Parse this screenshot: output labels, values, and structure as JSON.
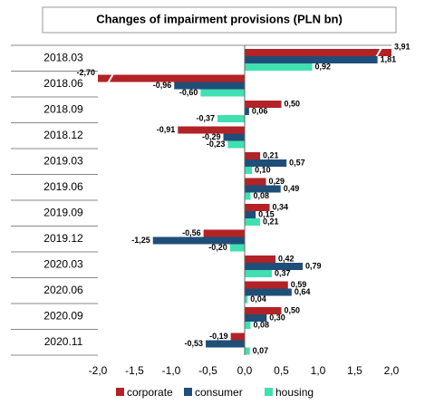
{
  "chart_data": {
    "type": "bar",
    "orientation": "horizontal",
    "title": "Changes of impairment provisions (PLN bn)",
    "categories": [
      "2018.03",
      "2018.06",
      "2018.09",
      "2018.12",
      "2019.03",
      "2019.06",
      "2019.09",
      "2019.12",
      "2020.03",
      "2020.06",
      "2020.09",
      "2020.11"
    ],
    "series": [
      {
        "name": "corporate",
        "color": "#b22226",
        "label_color": "#c0282d",
        "values": [
          3.91,
          -2.7,
          0.5,
          -0.91,
          0.21,
          0.29,
          0.34,
          -0.56,
          0.42,
          0.59,
          0.5,
          -0.19
        ],
        "value_labels": [
          "3,91",
          "-2,70",
          "0,50",
          "-0,91",
          "0,21",
          "0,29",
          "0,34",
          "-0,56",
          "0,42",
          "0,59",
          "0,50",
          "-0,19"
        ]
      },
      {
        "name": "consumer",
        "color": "#1f4e79",
        "label_color": "#1f4e79",
        "values": [
          1.81,
          -0.96,
          0.06,
          -0.29,
          0.57,
          0.49,
          0.15,
          -1.25,
          0.79,
          0.64,
          0.3,
          -0.53
        ],
        "value_labels": [
          "1,81",
          "-0,96",
          "0,06",
          "-0,29",
          "0,57",
          "0,49",
          "0,15",
          "-1,25",
          "0,79",
          "0,64",
          "0,30",
          "-0,53"
        ]
      },
      {
        "name": "housing",
        "color": "#40e0b0",
        "label_color": "#2a9d80",
        "values": [
          0.92,
          -0.6,
          -0.37,
          -0.23,
          0.1,
          0.08,
          0.21,
          -0.2,
          0.37,
          0.04,
          0.08,
          0.07
        ],
        "value_labels": [
          "0,92",
          "-0,60",
          "-0,37",
          "-0,23",
          "0,10",
          "0,08",
          "0,21",
          "-0,20",
          "0,37",
          "0,04",
          "0,08",
          "0,07"
        ]
      }
    ],
    "xlim": [
      -2.0,
      2.0
    ],
    "xticks": [
      {
        "value": -2.0,
        "label": "-2,0"
      },
      {
        "value": -1.5,
        "label": "-1,5"
      },
      {
        "value": -1.0,
        "label": "-1,0"
      },
      {
        "value": -0.5,
        "label": "-0,5"
      },
      {
        "value": 0,
        "label": "0,0"
      },
      {
        "value": 0.5,
        "label": "0,5"
      },
      {
        "value": 1.0,
        "label": "1,0"
      },
      {
        "value": 1.5,
        "label": "1,5"
      },
      {
        "value": 2.0,
        "label": "2,0"
      }
    ],
    "grid": false,
    "legend": "bottom"
  }
}
